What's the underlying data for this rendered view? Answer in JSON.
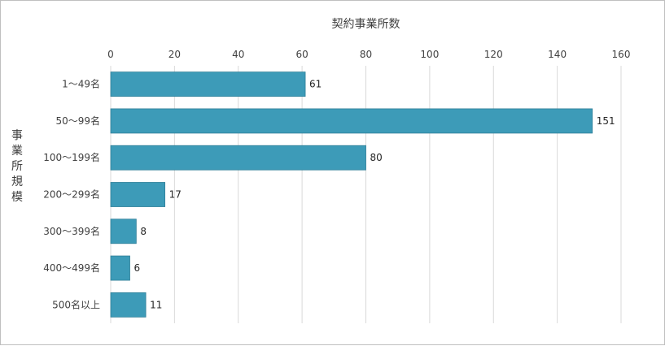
{
  "chart_data": {
    "type": "bar",
    "orientation": "horizontal",
    "xlabel": "契約事業所数",
    "ylabel": "事業所規模",
    "categories": [
      "1〜49名",
      "50〜99名",
      "100〜199名",
      "200〜299名",
      "300〜399名",
      "400〜499名",
      "500名以上"
    ],
    "values": [
      61,
      151,
      80,
      17,
      8,
      6,
      11
    ],
    "xlim": [
      0,
      160
    ],
    "xticks": [
      0,
      20,
      40,
      60,
      80,
      100,
      120,
      140,
      160
    ],
    "grid": true,
    "legend": "none",
    "bar_color": "#3d9bb8"
  }
}
